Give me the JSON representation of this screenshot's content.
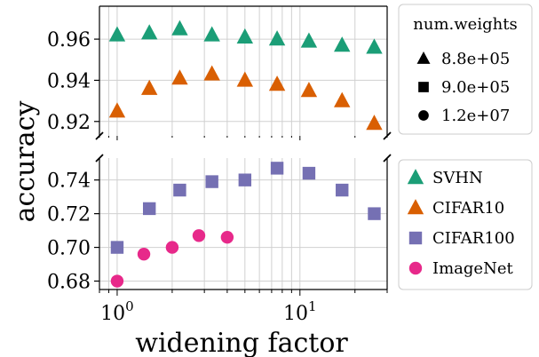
{
  "chart_data": {
    "type": "scatter",
    "x": [
      1.0,
      1.5,
      2.2,
      3.3,
      5.0,
      7.5,
      11.2,
      17.0,
      25.5
    ],
    "xlabel": "widening factor",
    "ylabel": "accuracy",
    "xscale": "log",
    "xlim": [
      0.8,
      30
    ],
    "xticks": [
      {
        "value": 1,
        "base": "10",
        "exp": "0"
      },
      {
        "value": 10,
        "base": "10",
        "exp": "1"
      }
    ],
    "grid": true,
    "broken_y_axis": true,
    "panels": [
      {
        "name": "top",
        "ylim": [
          0.913,
          0.976
        ],
        "yticks": [
          {
            "value": 0.92,
            "label": "0.92"
          },
          {
            "value": 0.94,
            "label": "0.94"
          },
          {
            "value": 0.96,
            "label": "0.96"
          }
        ],
        "series_names": [
          "SVHN",
          "CIFAR10"
        ]
      },
      {
        "name": "bottom",
        "ylim": [
          0.675,
          0.753
        ],
        "yticks": [
          {
            "value": 0.68,
            "label": "0.68"
          },
          {
            "value": 0.7,
            "label": "0.70"
          },
          {
            "value": 0.72,
            "label": "0.72"
          },
          {
            "value": 0.74,
            "label": "0.74"
          }
        ],
        "series_names": [
          "CIFAR100",
          "ImageNet"
        ]
      }
    ],
    "series": [
      {
        "name": "SVHN",
        "color": "#1b9e77",
        "marker": "triangle",
        "x": [
          1.0,
          1.5,
          2.2,
          3.3,
          5.0,
          7.5,
          11.2,
          17.0,
          25.5
        ],
        "values": [
          0.962,
          0.963,
          0.965,
          0.962,
          0.961,
          0.96,
          0.959,
          0.957,
          0.956
        ]
      },
      {
        "name": "CIFAR10",
        "color": "#d95f02",
        "marker": "triangle",
        "x": [
          1.0,
          1.5,
          2.2,
          3.3,
          5.0,
          7.5,
          11.2,
          17.0,
          25.5
        ],
        "values": [
          0.925,
          0.936,
          0.941,
          0.943,
          0.94,
          0.938,
          0.935,
          0.93,
          0.919
        ]
      },
      {
        "name": "CIFAR100",
        "color": "#7570b3",
        "marker": "square",
        "x": [
          1.0,
          1.5,
          2.2,
          3.3,
          5.0,
          7.5,
          11.2,
          17.0,
          25.5
        ],
        "values": [
          0.7,
          0.723,
          0.734,
          0.739,
          0.74,
          0.747,
          0.744,
          0.734,
          0.72
        ]
      },
      {
        "name": "ImageNet",
        "color": "#e7298a",
        "marker": "circle",
        "x": [
          1.0,
          1.4,
          2.0,
          2.8,
          4.0
        ],
        "values": [
          0.68,
          0.696,
          0.7,
          0.707,
          0.706
        ]
      }
    ],
    "legend_size": {
      "title": "num.weights",
      "entries": [
        {
          "marker": "triangle",
          "label": "8.8e+05"
        },
        {
          "marker": "square",
          "label": "9.0e+05"
        },
        {
          "marker": "circle",
          "label": "1.2e+07"
        }
      ]
    },
    "legend_datasets": {
      "entries": [
        {
          "marker": "triangle",
          "color": "#1b9e77",
          "label": "SVHN"
        },
        {
          "marker": "triangle",
          "color": "#d95f02",
          "label": "CIFAR10"
        },
        {
          "marker": "square",
          "color": "#7570b3",
          "label": "CIFAR100"
        },
        {
          "marker": "circle",
          "color": "#e7298a",
          "label": "ImageNet"
        }
      ]
    }
  }
}
